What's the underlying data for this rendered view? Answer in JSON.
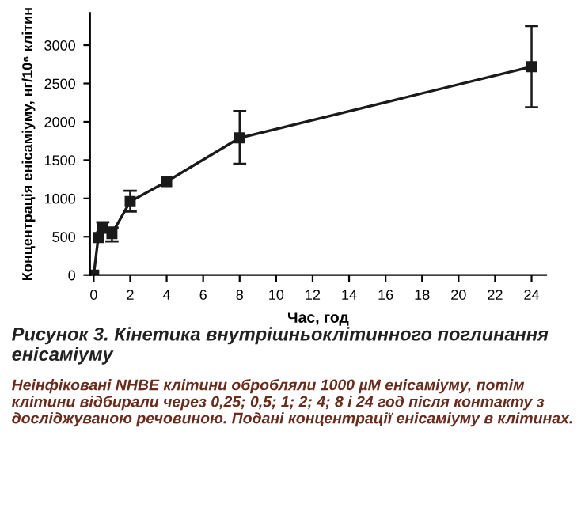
{
  "chart_data": {
    "type": "line",
    "title": "Рисунок 3. Кінетика внутрішньоклітинного поглинання енісаміуму",
    "xlabel": "Час, год",
    "ylabel": "Концентрація енісаміуму, нг/10⁶ клітин",
    "x": [
      0,
      0.25,
      0.5,
      1,
      2,
      4,
      8,
      24
    ],
    "series": [
      {
        "color": "#1a1a1a",
        "values": [
          0,
          490,
          610,
          540,
          960,
          1220,
          1790,
          2720
        ],
        "errors": [
          null,
          null,
          [
            560,
            690
          ],
          [
            440,
            620
          ],
          [
            830,
            1100
          ],
          null,
          [
            1450,
            2140
          ],
          [
            2190,
            3250
          ]
        ]
      }
    ],
    "xlim": [
      -0.2,
      24.8
    ],
    "ylim": [
      0,
      3420
    ],
    "xticks": [
      0,
      2,
      4,
      6,
      8,
      10,
      12,
      14,
      16,
      18,
      20,
      22,
      24
    ],
    "yticks": [
      0,
      500,
      1000,
      1500,
      2000,
      2500,
      3000
    ],
    "marker": "square",
    "line_style": "solid",
    "grid": false,
    "legend": false,
    "annotations": [
      "Неінфіковані NHBE клітини обробляли 1000 µM енісаміуму, потім клітини відбирали через 0,25; 0,5; 1; 2; 4; 8 і 24 год після контакту з досліджуваною речовиною. Подані концентрації енісаміуму в клітинах."
    ]
  }
}
